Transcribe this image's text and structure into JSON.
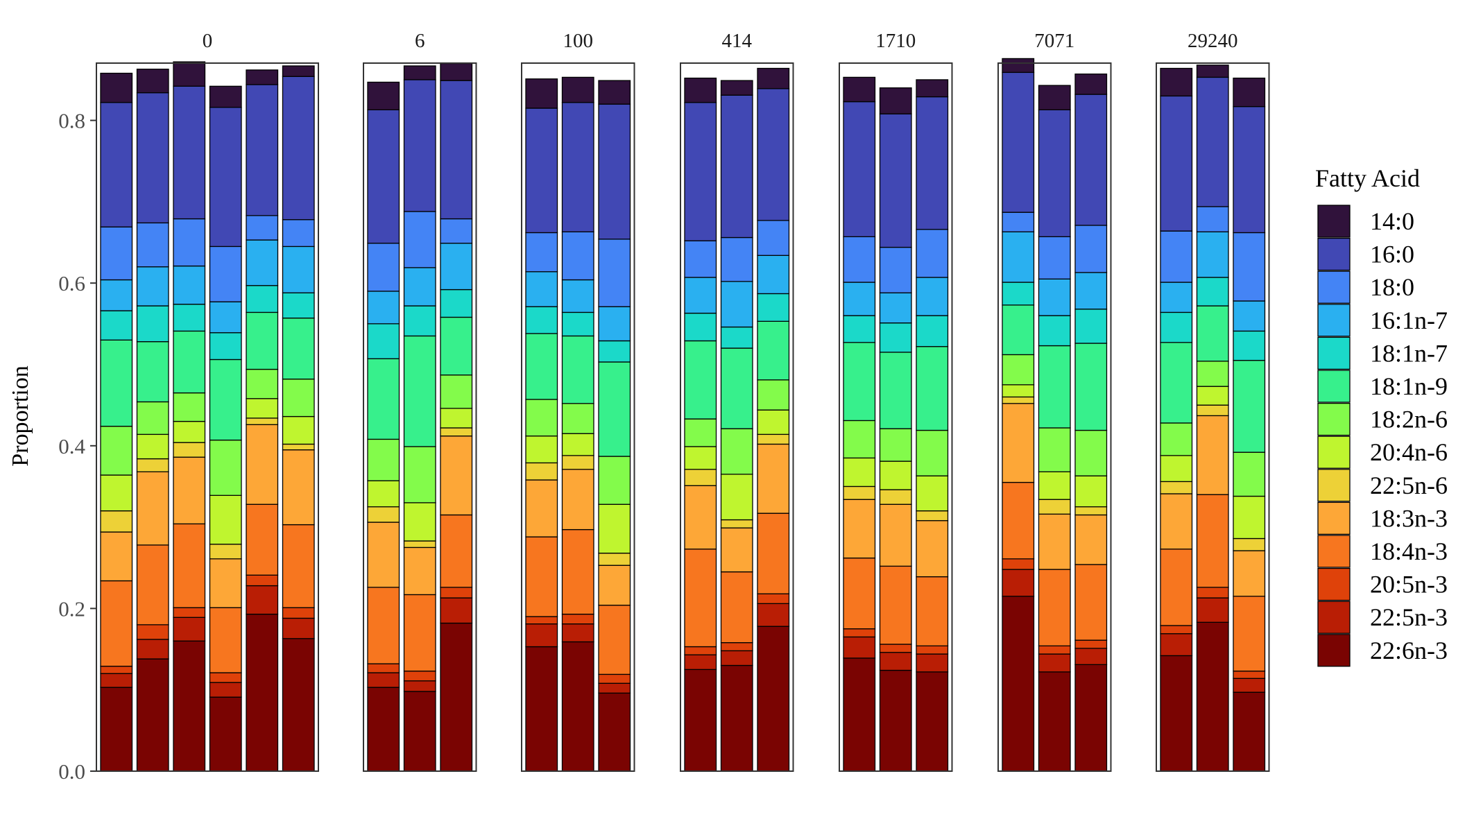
{
  "chart_data": {
    "type": "bar",
    "stacked": true,
    "facet_by": "",
    "ylabel": "Proportion",
    "xlabel": "",
    "ylim": [
      0,
      0.87
    ],
    "yticks": [
      0,
      0.2,
      0.4,
      0.6,
      0.8
    ],
    "ytick_labels": [
      "0.0",
      "0.2",
      "0.4",
      "0.6",
      "0.8"
    ],
    "legend": {
      "title": "Fatty Acid",
      "position": "right"
    },
    "series": [
      {
        "name": "14:0",
        "color": "#30123B"
      },
      {
        "name": "16:0",
        "color": "#4148B4"
      },
      {
        "name": "18:0",
        "color": "#4484F5"
      },
      {
        "name": "16:1n-7",
        "color": "#2AB0F0"
      },
      {
        "name": "18:1n-7",
        "color": "#1BD9C9"
      },
      {
        "name": "18:1n-9",
        "color": "#37F08C"
      },
      {
        "name": "18:2n-6",
        "color": "#83FB4B"
      },
      {
        "name": "20:4n-6",
        "color": "#BFF52F"
      },
      {
        "name": "22:5n-6",
        "color": "#EDD137"
      },
      {
        "name": "18:3n-3",
        "color": "#FDA737"
      },
      {
        "name": "18:4n-3",
        "color": "#F7761F"
      },
      {
        "name": "20:5n-3",
        "color": "#DF420A"
      },
      {
        "name": "22:5n-3",
        "color": "#B91E05"
      },
      {
        "name": "22:6n-3",
        "color": "#7A0402"
      }
    ],
    "facets": [
      {
        "label": "0",
        "bars": [
          [
            0.036,
            0.153,
            0.065,
            0.038,
            0.036,
            0.106,
            0.06,
            0.044,
            0.026,
            0.06,
            0.105,
            0.009,
            0.017,
            0.103
          ],
          [
            0.029,
            0.16,
            0.054,
            0.048,
            0.044,
            0.074,
            0.04,
            0.03,
            0.016,
            0.09,
            0.098,
            0.018,
            0.024,
            0.138
          ],
          [
            0.03,
            0.163,
            0.058,
            0.047,
            0.033,
            0.076,
            0.035,
            0.026,
            0.018,
            0.082,
            0.103,
            0.012,
            0.029,
            0.16
          ],
          [
            0.026,
            0.171,
            0.068,
            0.038,
            0.033,
            0.099,
            0.068,
            0.06,
            0.018,
            0.06,
            0.08,
            0.012,
            0.018,
            0.091
          ],
          [
            0.018,
            0.161,
            0.03,
            0.056,
            0.033,
            0.07,
            0.036,
            0.024,
            0.008,
            0.098,
            0.087,
            0.013,
            0.035,
            0.193
          ],
          [
            0.013,
            0.176,
            0.033,
            0.057,
            0.031,
            0.075,
            0.046,
            0.034,
            0.007,
            0.092,
            0.102,
            0.013,
            0.025,
            0.163
          ]
        ]
      },
      {
        "label": "6",
        "bars": [
          [
            0.034,
            0.164,
            0.059,
            0.04,
            0.043,
            0.099,
            0.051,
            0.032,
            0.019,
            0.08,
            0.094,
            0.011,
            0.018,
            0.103
          ],
          [
            0.017,
            0.162,
            0.069,
            0.047,
            0.037,
            0.136,
            0.069,
            0.047,
            0.008,
            0.058,
            0.094,
            0.012,
            0.013,
            0.098
          ],
          [
            0.021,
            0.17,
            0.03,
            0.057,
            0.034,
            0.071,
            0.041,
            0.024,
            0.01,
            0.097,
            0.089,
            0.013,
            0.031,
            0.182
          ]
        ]
      },
      {
        "label": "100",
        "bars": [
          [
            0.036,
            0.153,
            0.048,
            0.043,
            0.033,
            0.081,
            0.045,
            0.033,
            0.021,
            0.07,
            0.098,
            0.009,
            0.028,
            0.153
          ],
          [
            0.031,
            0.159,
            0.059,
            0.04,
            0.029,
            0.083,
            0.037,
            0.027,
            0.017,
            0.074,
            0.104,
            0.012,
            0.022,
            0.159
          ],
          [
            0.029,
            0.166,
            0.083,
            0.042,
            0.026,
            0.116,
            0.059,
            0.06,
            0.015,
            0.049,
            0.085,
            0.011,
            0.012,
            0.096
          ]
        ]
      },
      {
        "label": "414",
        "bars": [
          [
            0.03,
            0.17,
            0.045,
            0.044,
            0.034,
            0.096,
            0.034,
            0.028,
            0.02,
            0.078,
            0.12,
            0.01,
            0.018,
            0.125
          ],
          [
            0.018,
            0.175,
            0.054,
            0.056,
            0.026,
            0.099,
            0.056,
            0.056,
            0.01,
            0.054,
            0.087,
            0.01,
            0.018,
            0.13
          ],
          [
            0.025,
            0.162,
            0.043,
            0.047,
            0.034,
            0.072,
            0.037,
            0.03,
            0.012,
            0.085,
            0.099,
            0.012,
            0.028,
            0.178
          ]
        ]
      },
      {
        "label": "1710",
        "bars": [
          [
            0.03,
            0.166,
            0.056,
            0.041,
            0.033,
            0.096,
            0.046,
            0.035,
            0.016,
            0.072,
            0.087,
            0.01,
            0.026,
            0.139
          ],
          [
            0.032,
            0.164,
            0.056,
            0.037,
            0.036,
            0.094,
            0.04,
            0.035,
            0.018,
            0.076,
            0.096,
            0.01,
            0.022,
            0.124
          ],
          [
            0.021,
            0.163,
            0.059,
            0.047,
            0.038,
            0.103,
            0.056,
            0.043,
            0.012,
            0.069,
            0.085,
            0.01,
            0.022,
            0.122
          ]
        ]
      },
      {
        "label": "7071",
        "bars": [
          [
            0.017,
            0.172,
            0.024,
            0.062,
            0.028,
            0.061,
            0.037,
            0.015,
            0.008,
            0.097,
            0.094,
            0.013,
            0.033,
            0.215
          ],
          [
            0.03,
            0.156,
            0.052,
            0.045,
            0.037,
            0.101,
            0.054,
            0.034,
            0.018,
            0.068,
            0.094,
            0.01,
            0.022,
            0.122
          ],
          [
            0.025,
            0.161,
            0.058,
            0.045,
            0.042,
            0.107,
            0.056,
            0.038,
            0.01,
            0.061,
            0.093,
            0.01,
            0.02,
            0.131
          ]
        ]
      },
      {
        "label": "29240",
        "bars": [
          [
            0.034,
            0.166,
            0.063,
            0.037,
            0.037,
            0.099,
            0.04,
            0.032,
            0.015,
            0.068,
            0.094,
            0.01,
            0.027,
            0.142
          ],
          [
            0.015,
            0.159,
            0.031,
            0.056,
            0.035,
            0.068,
            0.031,
            0.023,
            0.013,
            0.097,
            0.114,
            0.013,
            0.03,
            0.183
          ],
          [
            0.035,
            0.155,
            0.084,
            0.037,
            0.036,
            0.113,
            0.054,
            0.052,
            0.015,
            0.056,
            0.092,
            0.009,
            0.017,
            0.097
          ]
        ]
      }
    ]
  }
}
